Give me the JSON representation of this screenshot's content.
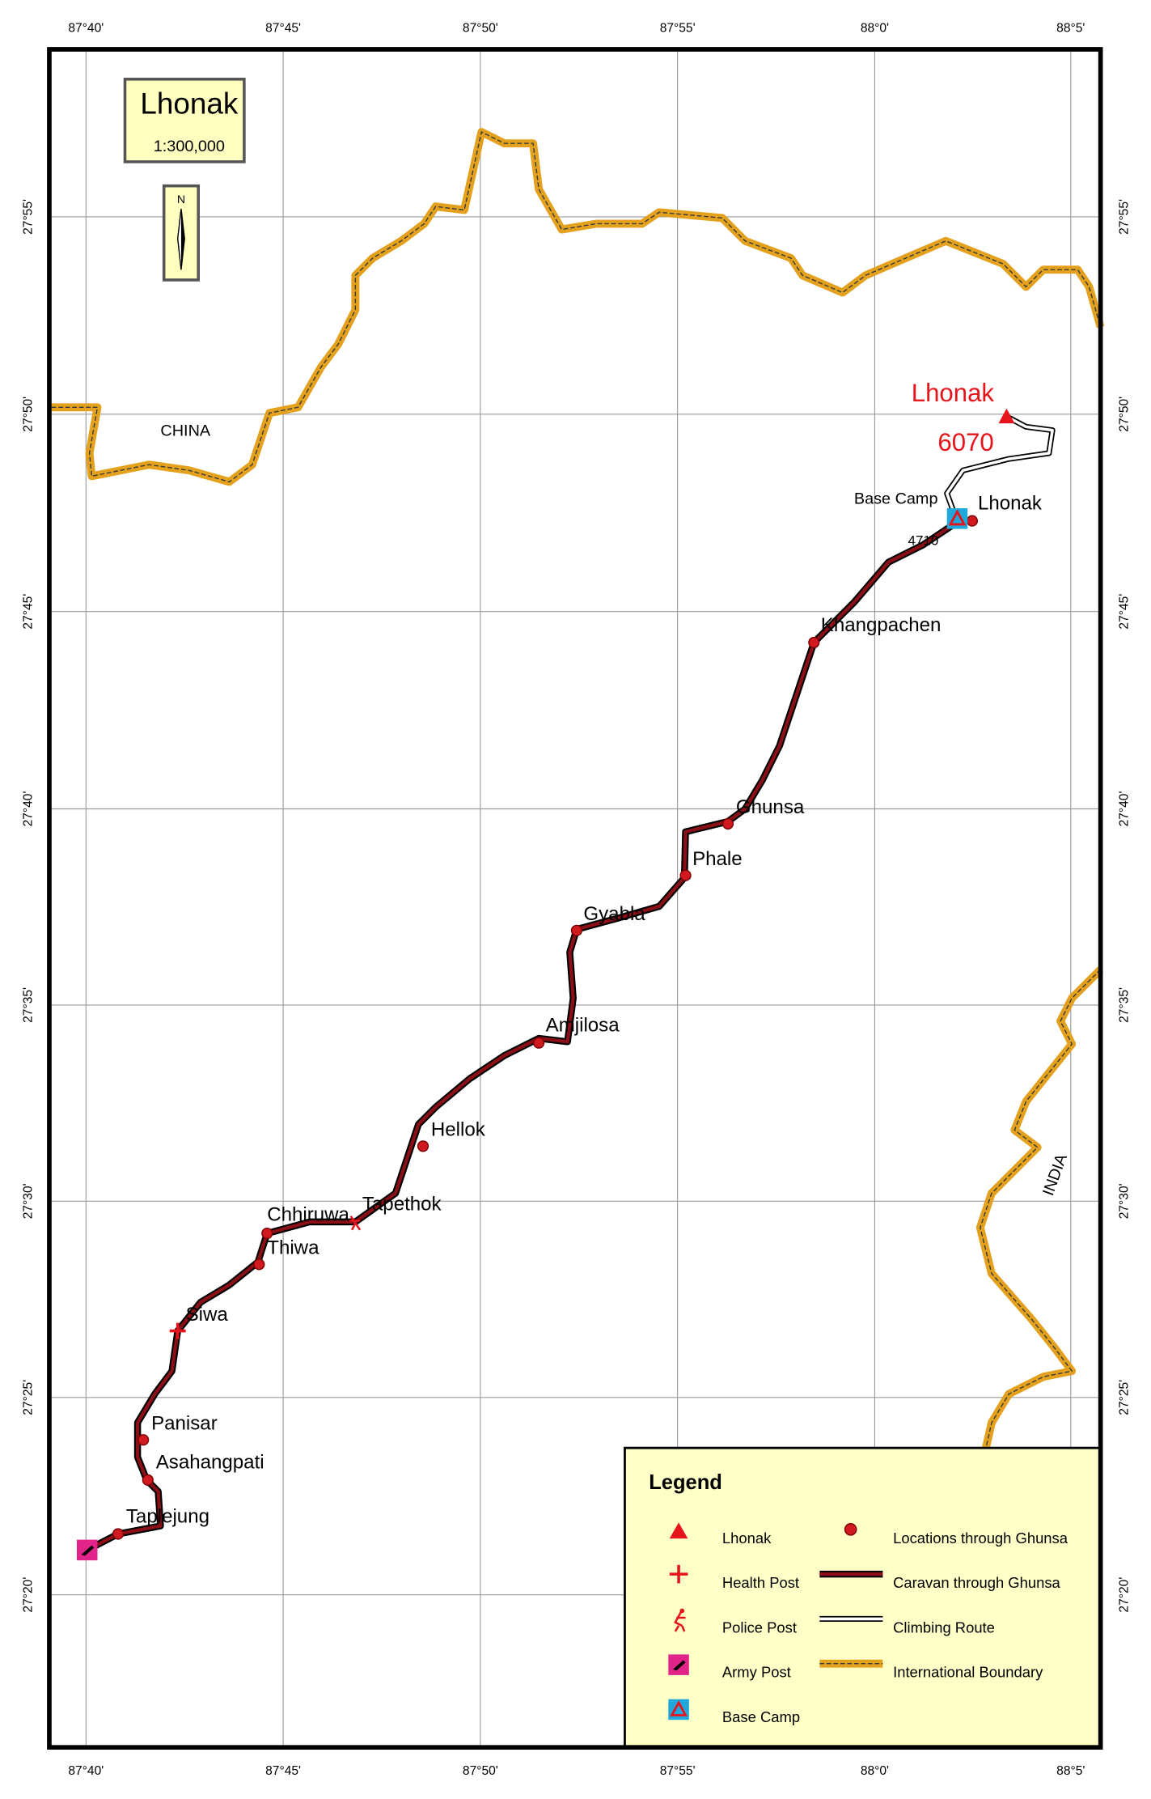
{
  "header": {
    "title": "Lhonak",
    "scale": "1:300,000",
    "north": "N"
  },
  "longitude_labels": [
    "87°40'",
    "87°45'",
    "87°50'",
    "87°55'",
    "88°0'",
    "88°5'"
  ],
  "latitude_labels": [
    "27°55'",
    "27°50'",
    "27°45'",
    "27°40'",
    "27°35'",
    "27°30'",
    "27°25'",
    "27°20'"
  ],
  "countries": [
    "CHINA",
    "INDIA"
  ],
  "peak": {
    "name": "Lhonak",
    "elevation": "6070"
  },
  "base_camp": {
    "label": "Base Camp",
    "elevation": "4710"
  },
  "places": [
    "Lhonak",
    "Khangpachen",
    "Ghunsa",
    "Phale",
    "Gyabla",
    "Amjilosa",
    "Hellok",
    "Tapethok",
    "Chhiruwa",
    "Thiwa",
    "Siwa",
    "Panisar",
    "Asahangpati",
    "Taplejung"
  ],
  "legend": {
    "title": "Legend",
    "items": [
      "Lhonak",
      "Health Post",
      "Police Post",
      "Army Post",
      "Base Camp",
      "Locations through Ghunsa",
      "Caravan through Ghunsa",
      "Climbing Route",
      "International Boundary"
    ]
  }
}
